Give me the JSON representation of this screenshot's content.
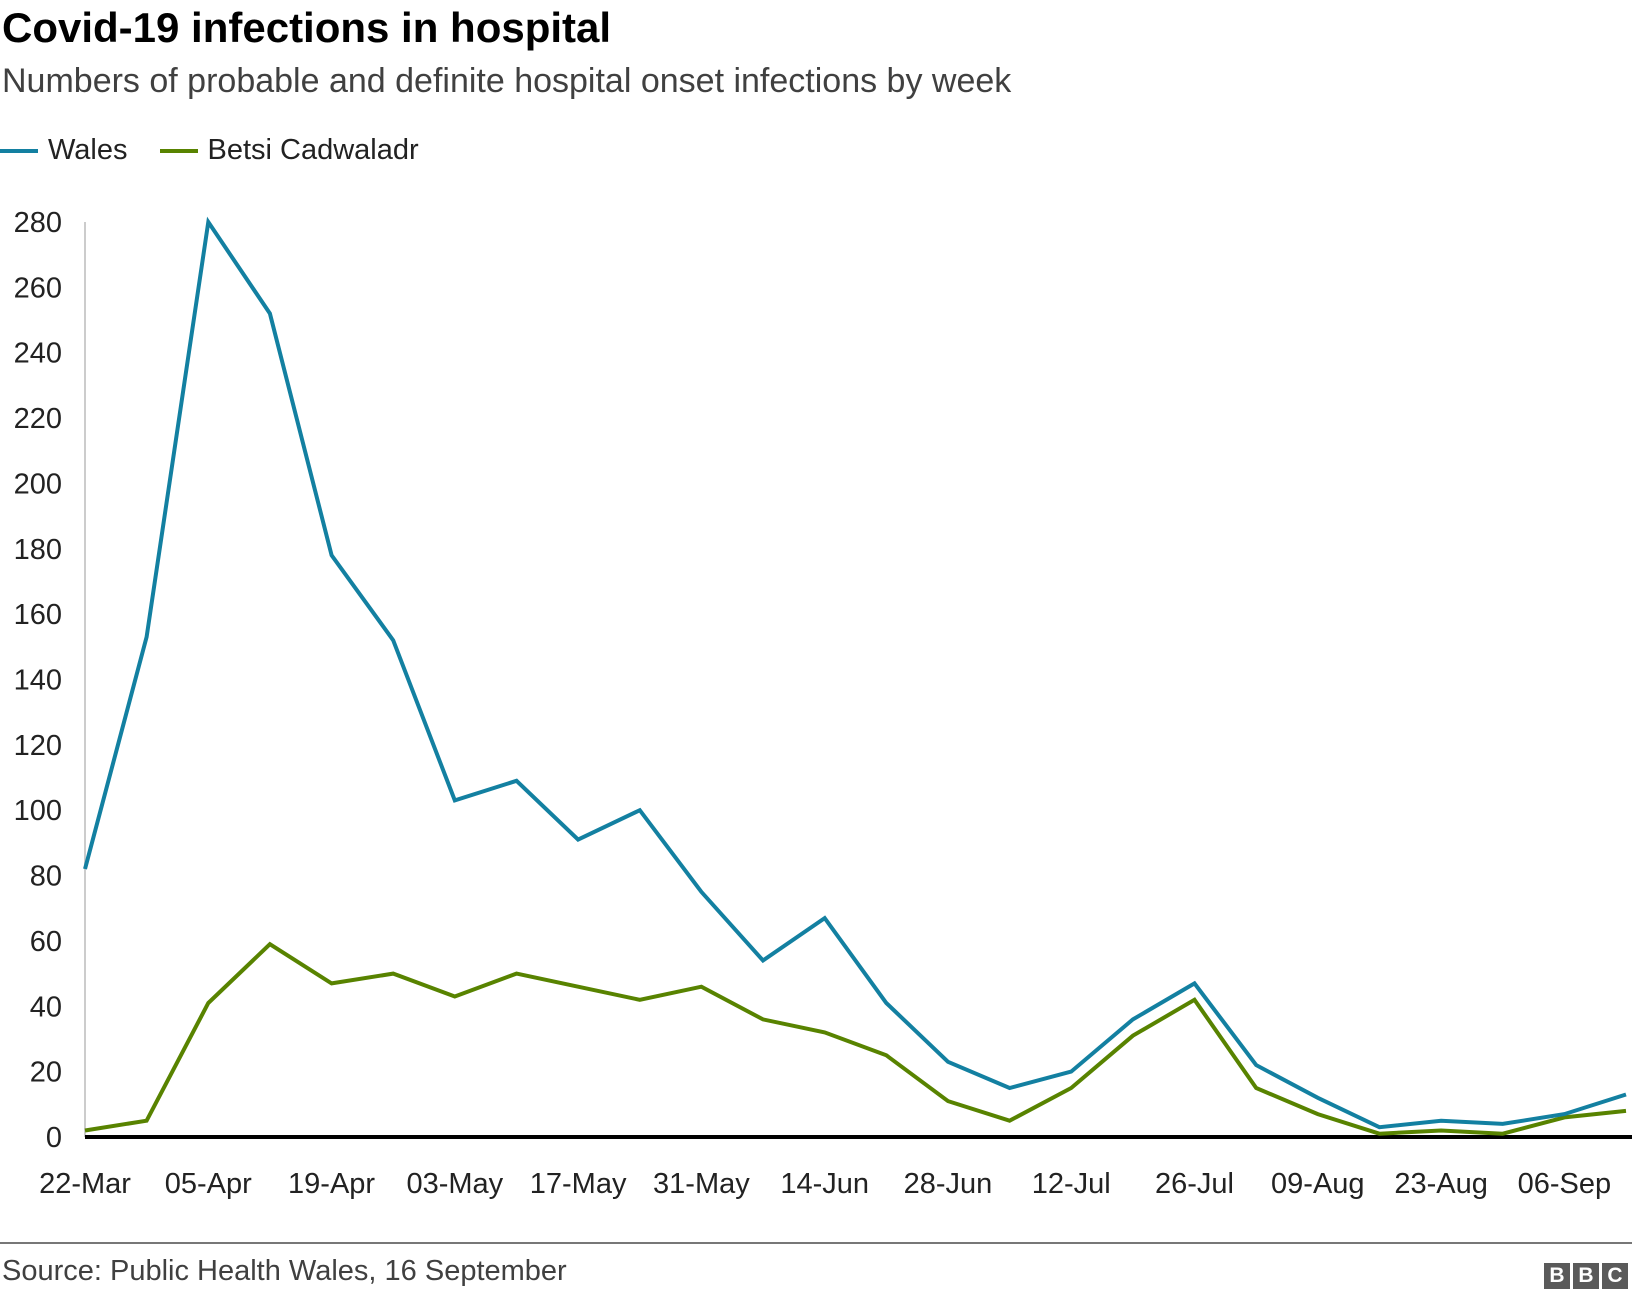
{
  "chart_data": {
    "type": "line",
    "title": "Covid-19 infections in hospital",
    "subtitle": "Numbers of probable and definite hospital onset infections by week",
    "xlabel": "",
    "ylabel": "",
    "ylim": [
      0,
      280
    ],
    "yticks": [
      0,
      20,
      40,
      60,
      80,
      100,
      120,
      140,
      160,
      180,
      200,
      220,
      240,
      260,
      280
    ],
    "x": [
      "22-Mar",
      "29-Mar",
      "05-Apr",
      "12-Apr",
      "19-Apr",
      "26-Apr",
      "03-May",
      "10-May",
      "17-May",
      "24-May",
      "31-May",
      "07-Jun",
      "14-Jun",
      "21-Jun",
      "28-Jun",
      "05-Jul",
      "12-Jul",
      "19-Jul",
      "26-Jul",
      "02-Aug",
      "09-Aug",
      "16-Aug",
      "23-Aug",
      "30-Aug",
      "06-Sep",
      "13-Sep"
    ],
    "xtick_labels": [
      "22-Mar",
      "05-Apr",
      "19-Apr",
      "03-May",
      "17-May",
      "31-May",
      "14-Jun",
      "28-Jun",
      "12-Jul",
      "26-Jul",
      "09-Aug",
      "23-Aug",
      "06-Sep"
    ],
    "legend_position": "top-left",
    "grid": false,
    "series": [
      {
        "name": "Wales",
        "color": "#1380a1",
        "values": [
          82,
          153,
          280,
          252,
          178,
          152,
          103,
          109,
          91,
          100,
          75,
          54,
          67,
          41,
          23,
          15,
          20,
          36,
          47,
          22,
          12,
          3,
          5,
          4,
          7,
          13
        ]
      },
      {
        "name": "Betsi Cadwaladr",
        "color": "#588300",
        "values": [
          2,
          5,
          41,
          59,
          47,
          50,
          43,
          50,
          46,
          42,
          46,
          36,
          32,
          25,
          11,
          5,
          15,
          31,
          42,
          15,
          7,
          1,
          2,
          1,
          6,
          8
        ]
      }
    ]
  },
  "footer": {
    "source": "Source: Public Health Wales, 16 September",
    "logo_letters": [
      "B",
      "B",
      "C"
    ]
  }
}
